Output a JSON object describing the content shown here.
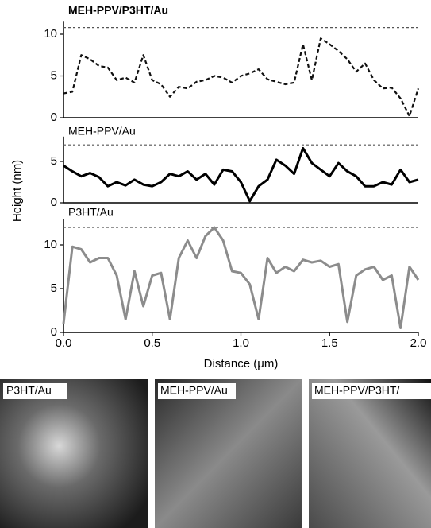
{
  "chart_data": [
    {
      "type": "line",
      "title": "MEH-PPV/P3HT/Au",
      "color": "#111111",
      "line_style": "dashed",
      "ref_line": 10.8,
      "xlim": [
        0,
        2
      ],
      "ylim": [
        0,
        11.5
      ],
      "yticks": [
        0,
        5,
        10
      ],
      "x": [
        0,
        0.05,
        0.1,
        0.15,
        0.2,
        0.25,
        0.3,
        0.35,
        0.4,
        0.45,
        0.5,
        0.55,
        0.6,
        0.65,
        0.7,
        0.75,
        0.8,
        0.85,
        0.9,
        0.95,
        1.0,
        1.05,
        1.1,
        1.15,
        1.2,
        1.25,
        1.3,
        1.35,
        1.4,
        1.45,
        1.5,
        1.55,
        1.6,
        1.65,
        1.7,
        1.75,
        1.8,
        1.85,
        1.9,
        1.95,
        2.0
      ],
      "values": [
        2.9,
        3.1,
        7.5,
        7.0,
        6.2,
        6.0,
        4.5,
        4.8,
        4.2,
        7.5,
        4.5,
        4.0,
        2.5,
        3.7,
        3.5,
        4.3,
        4.5,
        5.0,
        4.8,
        4.2,
        5.0,
        5.3,
        5.8,
        4.6,
        4.3,
        4.0,
        4.2,
        8.8,
        4.5,
        9.5,
        8.8,
        8.0,
        7.0,
        5.5,
        6.5,
        4.5,
        3.5,
        3.6,
        2.3,
        0.2,
        3.5
      ]
    },
    {
      "type": "line",
      "title": "MEH-PPV/Au",
      "color": "#000000",
      "line_style": "solid",
      "ref_line": 7,
      "ylabel": "Height (nm)",
      "xlim": [
        0,
        2
      ],
      "ylim": [
        0,
        8
      ],
      "yticks": [
        0,
        5
      ],
      "x": [
        0,
        0.05,
        0.1,
        0.15,
        0.2,
        0.25,
        0.3,
        0.35,
        0.4,
        0.45,
        0.5,
        0.55,
        0.6,
        0.65,
        0.7,
        0.75,
        0.8,
        0.85,
        0.9,
        0.95,
        1.0,
        1.05,
        1.1,
        1.15,
        1.2,
        1.25,
        1.3,
        1.35,
        1.4,
        1.45,
        1.5,
        1.55,
        1.6,
        1.65,
        1.7,
        1.75,
        1.8,
        1.85,
        1.9,
        1.95,
        2.0
      ],
      "values": [
        4.5,
        3.8,
        3.2,
        3.6,
        3.1,
        2.0,
        2.5,
        2.1,
        2.8,
        2.2,
        2.0,
        2.5,
        3.5,
        3.2,
        3.8,
        2.8,
        3.5,
        2.2,
        4.0,
        3.8,
        2.5,
        0.2,
        2.0,
        2.8,
        5.2,
        4.5,
        3.5,
        6.6,
        4.8,
        4.0,
        3.2,
        4.8,
        3.8,
        3.2,
        2.0,
        2.0,
        2.5,
        2.2,
        4.0,
        2.5,
        2.8
      ]
    },
    {
      "type": "line",
      "title": "P3HT/Au",
      "color": "#8c8c8c",
      "line_style": "solid",
      "ref_line": 12,
      "xlabel": "Distance (μm)",
      "xlim": [
        0,
        2
      ],
      "ylim": [
        0,
        13
      ],
      "yticks": [
        0,
        5,
        10
      ],
      "xticks": [
        {
          "value": 0,
          "label": "0.0"
        },
        {
          "value": 0.5,
          "label": "0.5"
        },
        {
          "value": 1,
          "label": "1.0"
        },
        {
          "value": 1.5,
          "label": "1.5"
        },
        {
          "value": 2,
          "label": "2.0"
        }
      ],
      "x": [
        0,
        0.05,
        0.1,
        0.15,
        0.2,
        0.25,
        0.3,
        0.35,
        0.4,
        0.45,
        0.5,
        0.55,
        0.6,
        0.65,
        0.7,
        0.75,
        0.8,
        0.85,
        0.9,
        0.95,
        1.0,
        1.05,
        1.1,
        1.15,
        1.2,
        1.25,
        1.3,
        1.35,
        1.4,
        1.45,
        1.5,
        1.55,
        1.6,
        1.65,
        1.7,
        1.75,
        1.8,
        1.85,
        1.9,
        1.95,
        2.0
      ],
      "values": [
        1.0,
        9.8,
        9.5,
        8.0,
        8.5,
        8.5,
        6.5,
        1.5,
        7.0,
        3.0,
        6.5,
        6.8,
        1.5,
        8.5,
        10.5,
        8.5,
        11.0,
        12.0,
        10.5,
        7.0,
        6.8,
        5.5,
        1.5,
        8.5,
        6.8,
        7.5,
        7.0,
        8.3,
        8.0,
        8.2,
        7.5,
        7.8,
        1.2,
        6.5,
        7.2,
        7.5,
        6.0,
        6.5,
        0.5,
        7.5,
        6.0
      ]
    }
  ],
  "images": [
    {
      "label": "P3HT/Au"
    },
    {
      "label": "MEH-PPV/Au"
    },
    {
      "label": "MEH-PPV/P3HT/"
    }
  ]
}
